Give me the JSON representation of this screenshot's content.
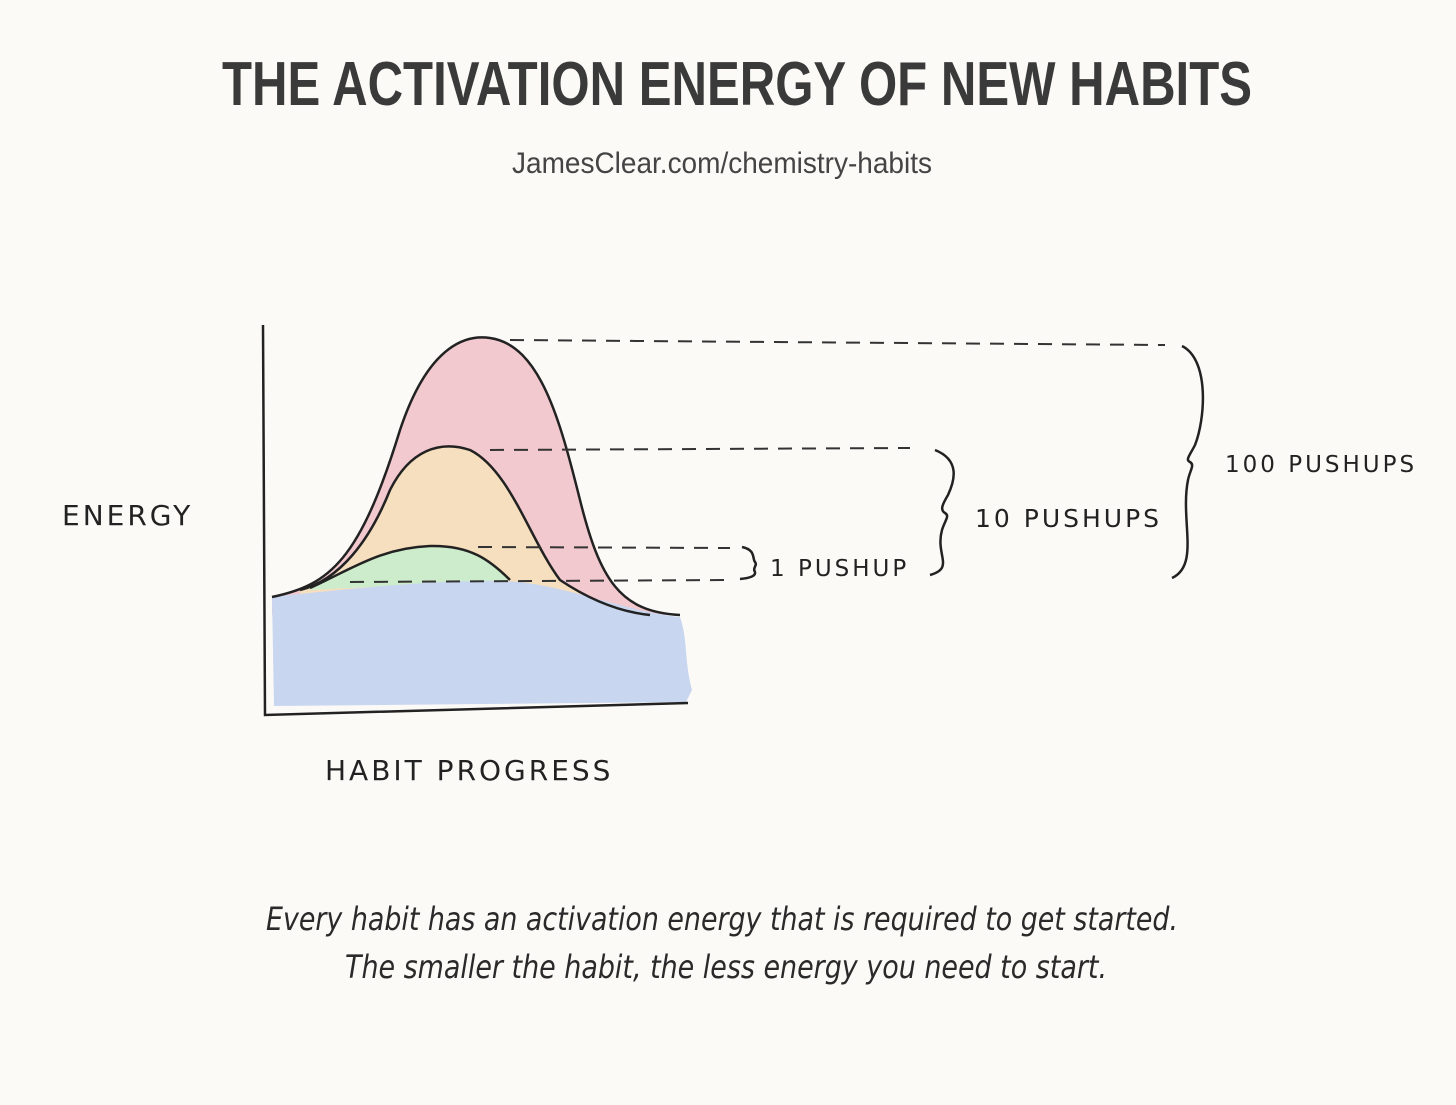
{
  "header": {
    "title": "THE ACTIVATION ENERGY OF NEW HABITS",
    "subtitle": "JamesClear.com/chemistry-habits"
  },
  "diagram": {
    "y_axis_label": "ENERGY",
    "x_axis_label": "HABIT PROGRESS",
    "labels": [
      "1 PUSHUP",
      "10 PUSHUPS",
      "100 PUSHUPS"
    ]
  },
  "caption": [
    "Every habit has an activation energy that is required to get started.",
    "The smaller the habit, the less energy you need to start."
  ]
}
